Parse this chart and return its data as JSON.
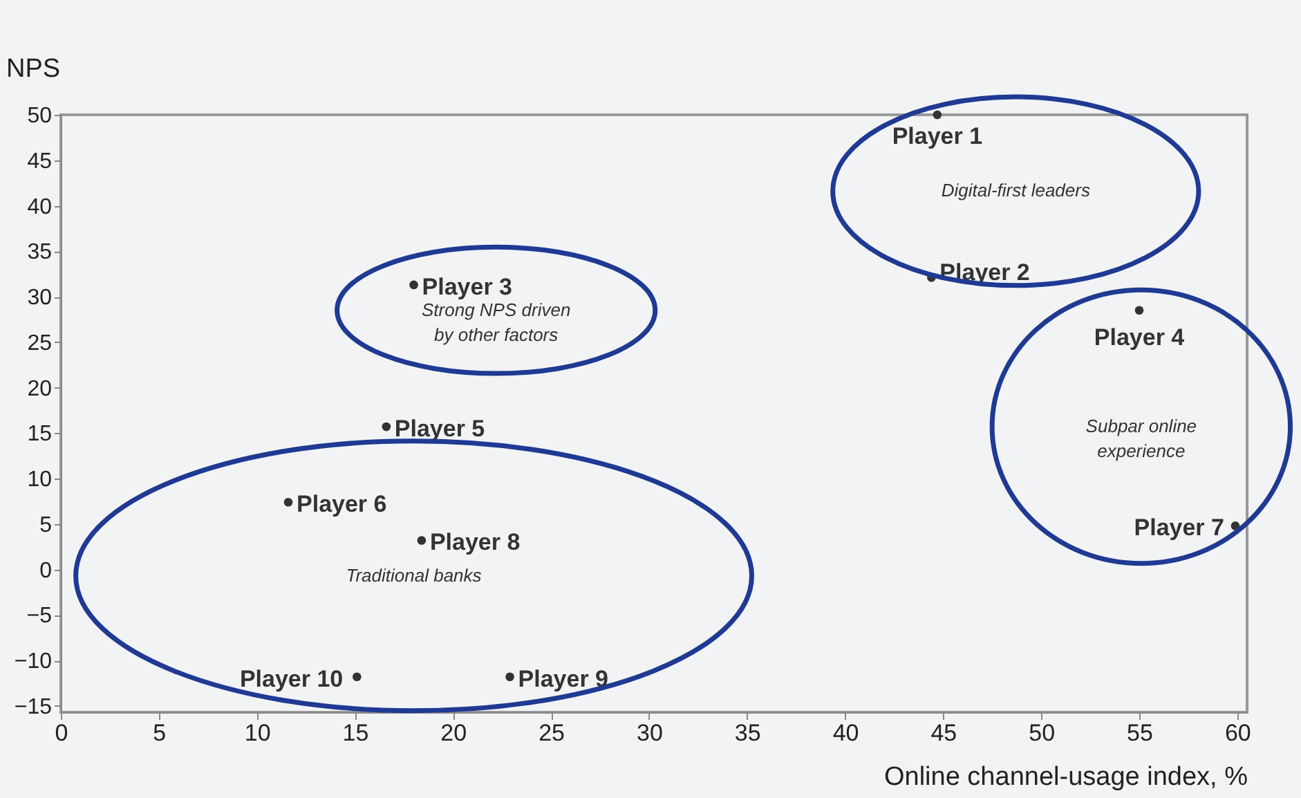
{
  "chart_data": {
    "type": "scatter",
    "xlabel": "Online channel-usage index, %",
    "ylabel": "NPS",
    "x": [
      44.7,
      44.4,
      18.0,
      55.0,
      16.6,
      11.6,
      59.9,
      18.4,
      22.9,
      15.1
    ],
    "series": [
      {
        "color": "#333333",
        "values": [
          50,
          32.1,
          31.3,
          28.5,
          15.7,
          7.4,
          4.8,
          3.2,
          -11.8,
          -11.8
        ],
        "value_labels": [
          "Player 1",
          "Player 2",
          "Player 3",
          "Player 4",
          "Player 5",
          "Player 6",
          "Player 7",
          "Player 8",
          "Player 9",
          "Player 10"
        ]
      }
    ],
    "xlim": [
      0,
      60.5
    ],
    "ylim": [
      -15.7,
      50
    ],
    "xticks": [
      0,
      5,
      10,
      15,
      20,
      25,
      30,
      35,
      40,
      45,
      50,
      55,
      60
    ],
    "yticks": [
      -15,
      -10,
      -5,
      0,
      5,
      10,
      15,
      20,
      25,
      30,
      35,
      40,
      45,
      50
    ],
    "grid": false,
    "marker": "circle",
    "annotations": [
      "Digital-first leaders",
      "Strong NPS driven\nby other factors",
      "Subpar online\nexperience",
      "Traditional banks"
    ]
  }
}
